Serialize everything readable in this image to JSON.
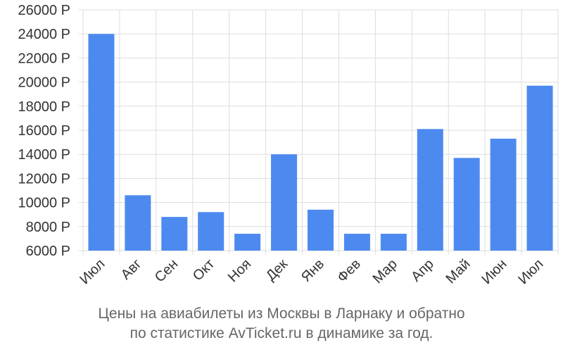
{
  "chart_data": {
    "type": "bar",
    "categories": [
      "Июл",
      "Авг",
      "Сен",
      "Окт",
      "Ноя",
      "Дек",
      "Янв",
      "Фев",
      "Мар",
      "Апр",
      "Май",
      "Июн",
      "Июл"
    ],
    "values": [
      24000,
      10600,
      8800,
      9200,
      7400,
      14000,
      9400,
      7400,
      7400,
      16100,
      13700,
      15300,
      19700
    ],
    "ylim": [
      6000,
      26000
    ],
    "yticks": [
      6000,
      8000,
      10000,
      12000,
      14000,
      16000,
      18000,
      20000,
      22000,
      24000,
      26000
    ],
    "ytick_suffix": " Р",
    "grid": true,
    "bar_color": "#4d8af0",
    "grid_color": "#dddddd"
  },
  "caption": {
    "line1": "Цены на авиабилеты из Москвы в Ларнаку и обратно",
    "line2": "по статистике AvTicket.ru в динамике за год."
  }
}
